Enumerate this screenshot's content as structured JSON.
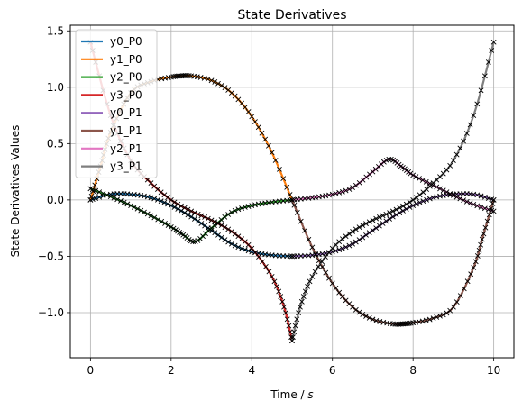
{
  "chart_data": {
    "type": "line",
    "title": "State Derivatives",
    "xlabel_prefix": "Time / ",
    "xlabel_unit": "s",
    "ylabel": "State Derivatives Values",
    "xlim": [
      -0.5,
      10.5
    ],
    "ylim": [
      -1.4,
      1.55
    ],
    "xticks": [
      0,
      2,
      4,
      6,
      8,
      10
    ],
    "xtick_labels": [
      "0",
      "2",
      "4",
      "6",
      "8",
      "10"
    ],
    "yticks": [
      -1.0,
      -0.5,
      0.0,
      0.5,
      1.0,
      1.5
    ],
    "ytick_labels": [
      "−1.0",
      "−0.5",
      "0.0",
      "0.5",
      "1.0",
      "1.5"
    ],
    "grid": true,
    "legend_position": "top-left",
    "marker_color": "#000000",
    "series": [
      {
        "name": "y0_P0",
        "color": "#1f77b4",
        "x": [
          0,
          0.5,
          1,
          1.5,
          2,
          2.5,
          3,
          3.5,
          4,
          4.5,
          5
        ],
        "y": [
          0.0,
          0.05,
          0.05,
          0.02,
          -0.05,
          -0.15,
          -0.27,
          -0.39,
          -0.46,
          -0.49,
          -0.5
        ]
      },
      {
        "name": "y1_P0",
        "color": "#ff7f0e",
        "x": [
          0,
          0.25,
          0.5,
          1,
          1.5,
          2,
          2.25,
          2.5,
          3,
          3.5,
          4,
          4.5,
          5
        ],
        "y": [
          0.0,
          0.3,
          0.6,
          0.95,
          1.05,
          1.09,
          1.1,
          1.1,
          1.06,
          0.95,
          0.74,
          0.42,
          0.0
        ]
      },
      {
        "name": "y2_P0",
        "color": "#2ca02c",
        "x": [
          0,
          0.5,
          1,
          1.5,
          2,
          2.3,
          2.6,
          3,
          3.5,
          4,
          4.5,
          5
        ],
        "y": [
          0.1,
          0.03,
          -0.05,
          -0.14,
          -0.24,
          -0.31,
          -0.37,
          -0.25,
          -0.11,
          -0.05,
          -0.02,
          0.0
        ]
      },
      {
        "name": "y3_P0",
        "color": "#d62728",
        "x": [
          0,
          0.5,
          1,
          1.5,
          2,
          2.5,
          3,
          3.5,
          4,
          4.5,
          4.8,
          5
        ],
        "y": [
          1.4,
          0.75,
          0.35,
          0.15,
          0.0,
          -0.1,
          -0.18,
          -0.28,
          -0.43,
          -0.68,
          -0.95,
          -1.25
        ]
      },
      {
        "name": "y0_P1",
        "color": "#9467bd",
        "x": [
          5,
          5.5,
          6,
          6.5,
          7,
          7.5,
          8,
          8.5,
          9,
          9.5,
          10
        ],
        "y": [
          -0.5,
          -0.49,
          -0.46,
          -0.39,
          -0.27,
          -0.15,
          -0.05,
          0.02,
          0.05,
          0.05,
          0.0
        ]
      },
      {
        "name": "y1_P1",
        "color": "#8c564b",
        "x": [
          5,
          5.5,
          6,
          6.5,
          7,
          7.5,
          7.75,
          8,
          8.5,
          9,
          9.5,
          9.75,
          10
        ],
        "y": [
          0.0,
          -0.42,
          -0.74,
          -0.95,
          -1.06,
          -1.1,
          -1.1,
          -1.09,
          -1.05,
          -0.95,
          -0.6,
          -0.3,
          0.0
        ]
      },
      {
        "name": "y2_P1",
        "color": "#e377c2",
        "x": [
          5,
          5.5,
          6,
          6.5,
          7,
          7.4,
          7.7,
          8,
          8.5,
          9,
          9.5,
          10
        ],
        "y": [
          0.0,
          0.02,
          0.05,
          0.11,
          0.25,
          0.36,
          0.3,
          0.22,
          0.13,
          0.04,
          -0.04,
          -0.1
        ]
      },
      {
        "name": "y3_P1",
        "color": "#7f7f7f",
        "x": [
          5,
          5.2,
          5.5,
          6,
          6.5,
          7,
          7.5,
          8,
          8.5,
          9,
          9.5,
          10
        ],
        "y": [
          -1.25,
          -0.95,
          -0.68,
          -0.43,
          -0.28,
          -0.18,
          -0.1,
          0.0,
          0.15,
          0.35,
          0.75,
          1.4
        ]
      }
    ]
  }
}
